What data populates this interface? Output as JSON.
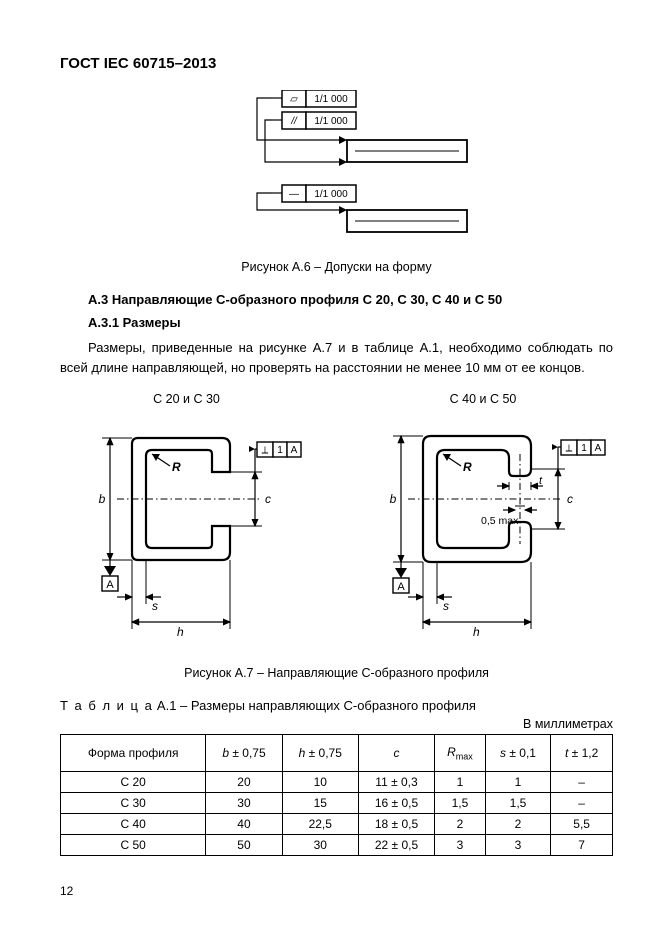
{
  "doc_title": "ГОСТ IEC 60715–2013",
  "fig_a6": {
    "tol1_sym": "▱",
    "tol1_val": "1/1 000",
    "tol2_sym": "//",
    "tol2_val": "1/1 000",
    "tol3_sym": "—",
    "tol3_val": "1/1 000",
    "caption": "Рисунок А.6 – Допуски на форму"
  },
  "section_a3": {
    "heading": "А.3 Направляющие С-образного профиля С 20, С 30, С 40 и С 50",
    "sub_heading": "А.3.1 Размеры",
    "paragraph": "Размеры, приведенные на рисунке А.7 и в таблице А.1, необходимо соблюдать по всей длине направляющей, но проверять на расстоянии не менее 10 мм от ее концов."
  },
  "fig_a7": {
    "left_title": "С 20 и С 30",
    "right_title": "С 40 и С 50",
    "caption": "Рисунок А.7 – Направляющие С-образного профиля",
    "labels": {
      "b": "b",
      "h": "h",
      "c": "c",
      "s": "s",
      "R": "R",
      "t": "t",
      "A": "A",
      "half_max": "0,5  max",
      "datum_call": "1",
      "datum_callA": "A"
    },
    "style": {
      "stroke": "#000000",
      "stroke_width": 1.8,
      "dim_stroke_width": 1.2,
      "dashdot": "6 3 1 3",
      "font_size": 11,
      "font_family": "Arial"
    }
  },
  "table_a1": {
    "title_spaced": "Т а б л и ц а",
    "title_rest": "  А.1 – Размеры направляющих С-образного профиля",
    "units": "В миллиметрах",
    "columns": [
      "Форма профиля",
      "b ± 0,75",
      "h ± 0,75",
      "c",
      "Rmax",
      "s ± 0,1",
      "t ± 1,2"
    ],
    "rows": [
      [
        "C 20",
        "20",
        "10",
        "11 ± 0,3",
        "1",
        "1",
        "–"
      ],
      [
        "C 30",
        "30",
        "15",
        "16 ± 0,5",
        "1,5",
        "1,5",
        "–"
      ],
      [
        "C 40",
        "40",
        "22,5",
        "18 ± 0,5",
        "2",
        "2",
        "5,5"
      ],
      [
        "C 50",
        "50",
        "30",
        "22 ± 0,5",
        "3",
        "3",
        "7"
      ]
    ]
  },
  "page_number": "12"
}
